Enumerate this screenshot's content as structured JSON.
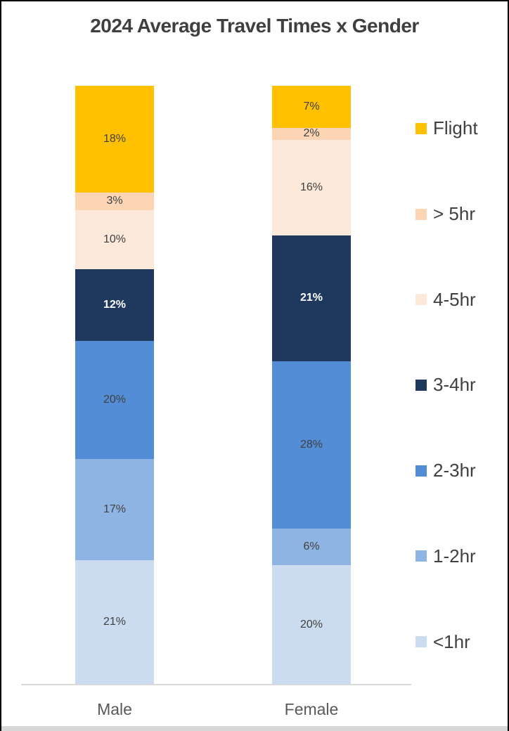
{
  "title": "2024 Average Travel Times x Gender",
  "chart_data": {
    "type": "bar",
    "stacked": true,
    "orientation": "vertical",
    "unit": "%",
    "data_label_suffix": "%",
    "categories": [
      "Male",
      "Female"
    ],
    "series_order": "top-of-stack-first",
    "series": [
      {
        "name": "Flight",
        "color": "#FFC000",
        "label_color": "#404040",
        "label_bold": false,
        "values": [
          18,
          7
        ]
      },
      {
        "name": "> 5hr",
        "color": "#FCD5B4",
        "label_color": "#404040",
        "label_bold": false,
        "values": [
          3,
          2
        ]
      },
      {
        "name": "4-5hr",
        "color": "#FDE9D9",
        "label_color": "#404040",
        "label_bold": false,
        "values": [
          10,
          16
        ]
      },
      {
        "name": "3-4hr",
        "color": "#1F395E",
        "label_color": "#FFFFFF",
        "label_bold": true,
        "values": [
          12,
          21
        ]
      },
      {
        "name": "2-3hr",
        "color": "#538DD5",
        "label_color": "#404040",
        "label_bold": false,
        "values": [
          20,
          28
        ]
      },
      {
        "name": "1-2hr",
        "color": "#8DB4E2",
        "label_color": "#404040",
        "label_bold": false,
        "values": [
          17,
          6
        ]
      },
      {
        "name": "<1hr",
        "color": "#CBDBF0",
        "label_color": "#404040",
        "label_bold": false,
        "values": [
          21,
          20
        ]
      }
    ],
    "legend_position": "right",
    "gridlines": false,
    "y_axis_visible": false,
    "axis_line_color": "#D9D9D9"
  },
  "colors": {
    "background": "#FFFFFF",
    "border": "#000000",
    "title_text": "#3F3F3F",
    "category_text": "#595959",
    "legend_text": "#404040",
    "bottom_strip": "#D7D7D7"
  }
}
